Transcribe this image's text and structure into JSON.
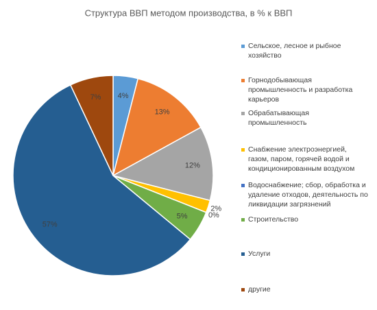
{
  "chart_data": {
    "type": "pie",
    "title": "Структура ВВП методом производства, в % к ВВП",
    "categories": [
      "Сельское, лесное и рыбное хозяйство",
      "Горнодобывающая промышленность и разработка карьеров",
      "Обрабатывающая промышленность",
      "Снабжение электроэнергией, газом, паром, горячей водой и кондиционированным воздухом",
      "Водоснабжение; сбор, обработка и удаление отходов, деятельность по ликвидации загрязнений",
      "Строительство",
      "Услуги",
      "другие"
    ],
    "values": [
      4,
      13,
      12,
      2,
      0,
      5,
      57,
      7
    ],
    "value_labels": [
      "4%",
      "13%",
      "12%",
      "2%",
      "0%",
      "5%",
      "57%",
      "7%"
    ],
    "colors": [
      "#5b9bd5",
      "#ed7d31",
      "#a5a5a5",
      "#ffc000",
      "#4472c4",
      "#70ad47",
      "#255e91",
      "#9e480e"
    ],
    "legend": "right"
  }
}
